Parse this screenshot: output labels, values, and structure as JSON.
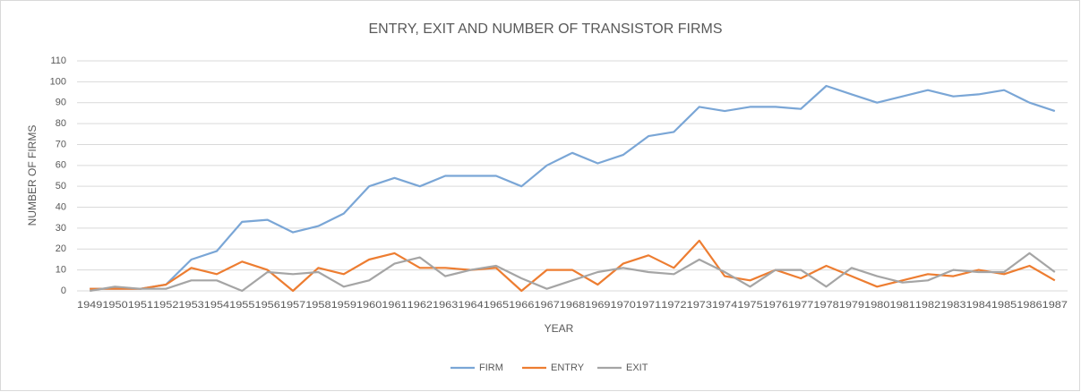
{
  "chart_data": {
    "type": "line",
    "title": "ENTRY, EXIT AND NUMBER OF TRANSISTOR FIRMS",
    "x_label": "YEAR",
    "y_label": "NUMBER OF FIRMS",
    "categories": [
      "1949",
      "1950",
      "1951",
      "1952",
      "1953",
      "1954",
      "1955",
      "1956",
      "1957",
      "1958",
      "1959",
      "1960",
      "1961",
      "1962",
      "1963",
      "1964",
      "1965",
      "1966",
      "1967",
      "1968",
      "1969",
      "1970",
      "1971",
      "1972",
      "1973",
      "1974",
      "1975",
      "1976",
      "1977",
      "1978",
      "1979",
      "1980",
      "1981",
      "1982",
      "1983",
      "1984",
      "1985",
      "1986",
      "1987"
    ],
    "series": [
      {
        "name": "FIRM",
        "color": "#7aa6d6",
        "values": [
          1,
          1,
          1,
          3,
          15,
          19,
          33,
          34,
          28,
          31,
          37,
          50,
          54,
          50,
          55,
          55,
          55,
          50,
          60,
          66,
          61,
          65,
          74,
          76,
          88,
          86,
          88,
          88,
          87,
          98,
          94,
          90,
          93,
          96,
          93,
          94,
          96,
          90,
          86
        ]
      },
      {
        "name": "ENTRY",
        "color": "#ed7d31",
        "values": [
          1,
          1,
          1,
          3,
          11,
          8,
          14,
          10,
          0,
          11,
          8,
          15,
          18,
          11,
          11,
          10,
          11,
          0,
          10,
          10,
          3,
          13,
          17,
          11,
          24,
          7,
          5,
          10,
          6,
          12,
          7,
          2,
          5,
          8,
          7,
          10,
          8,
          12,
          5
        ]
      },
      {
        "name": "EXIT",
        "color": "#a5a5a5",
        "values": [
          0,
          2,
          1,
          1,
          5,
          5,
          0,
          9,
          8,
          9,
          2,
          5,
          13,
          16,
          7,
          10,
          12,
          6,
          1,
          5,
          9,
          11,
          9,
          8,
          15,
          9,
          2,
          10,
          10,
          2,
          11,
          7,
          4,
          5,
          10,
          9,
          9,
          18,
          9
        ]
      }
    ],
    "ylim": [
      0,
      110
    ],
    "yticks": [
      0,
      10,
      20,
      30,
      40,
      50,
      60,
      70,
      80,
      90,
      100,
      110
    ],
    "grid": true,
    "legend": "bottom"
  }
}
